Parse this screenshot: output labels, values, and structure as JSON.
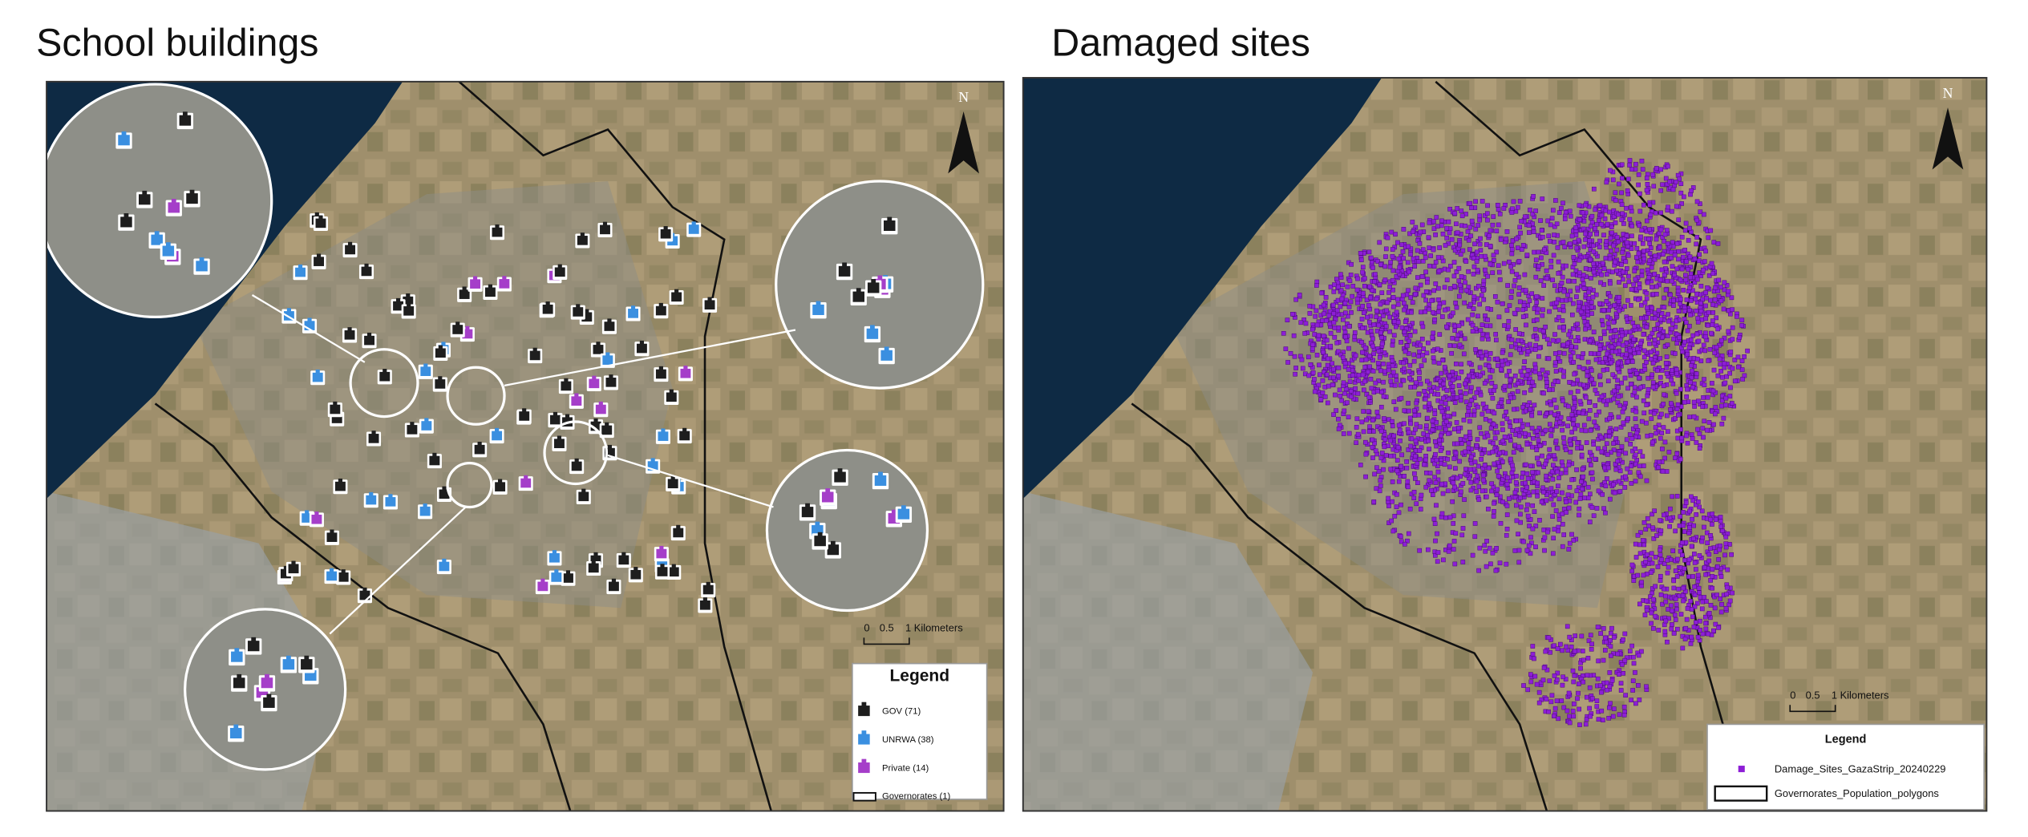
{
  "panels": [
    {
      "title": "School buildings",
      "north": "N",
      "scale": [
        "0",
        "0.5",
        "1 Kilometers"
      ],
      "legend": {
        "title": "Legend",
        "items": [
          "GOV (71)",
          "UNRWA (38)",
          "Private (14)",
          "Governorates (1)"
        ]
      }
    },
    {
      "title": "Damaged sites",
      "north": "N",
      "scale": [
        "0",
        "0.5",
        "1 Kilometers"
      ],
      "legend": {
        "title": "Legend",
        "items": [
          "Damage_Sites_GazaStrip_20240229",
          "Governorates_Population_polygons"
        ]
      }
    }
  ]
}
